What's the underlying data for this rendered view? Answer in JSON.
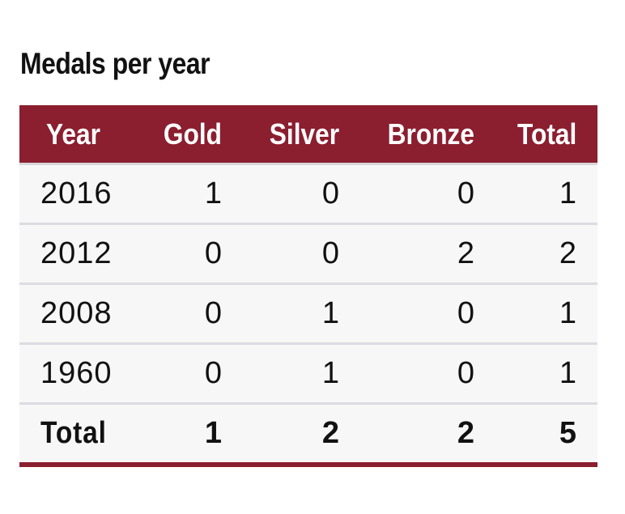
{
  "title": "Medals per year",
  "colors": {
    "header_background": "#8b1e2f",
    "header_text": "#ffffff",
    "row_background": "#f7f7f7",
    "row_divider": "#dcdce2",
    "bottom_rule": "#8b1e2f"
  },
  "table": {
    "headers": [
      "Year",
      "Gold",
      "Silver",
      "Bronze",
      "Total"
    ],
    "rows": [
      {
        "year": "2016",
        "gold": "1",
        "silver": "0",
        "bronze": "0",
        "total": "1"
      },
      {
        "year": "2012",
        "gold": "0",
        "silver": "0",
        "bronze": "2",
        "total": "2"
      },
      {
        "year": "2008",
        "gold": "0",
        "silver": "1",
        "bronze": "0",
        "total": "1"
      },
      {
        "year": "1960",
        "gold": "0",
        "silver": "1",
        "bronze": "0",
        "total": "1"
      }
    ],
    "totals": {
      "label": "Total",
      "gold": "1",
      "silver": "2",
      "bronze": "2",
      "total": "5"
    }
  }
}
